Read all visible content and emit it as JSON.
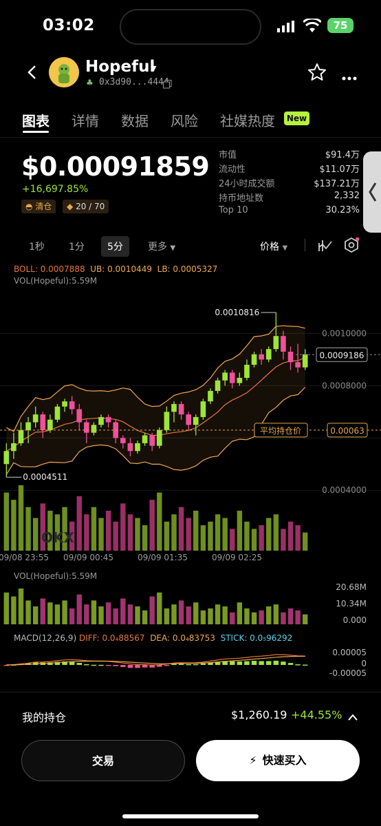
{
  "status": {
    "time": "03:02",
    "battery": "75"
  },
  "token": {
    "name": "Hopeful",
    "address": "0x3d90...4444"
  },
  "tabs": [
    {
      "label": "图表"
    },
    {
      "label": "详情"
    },
    {
      "label": "数据"
    },
    {
      "label": "风险"
    },
    {
      "label": "社媒热度"
    }
  ],
  "new_badge": "New",
  "price": {
    "value": "$0.00091859",
    "change": "+16,697.85%",
    "chip_clear": "清仓",
    "chip_score": "20 / 70"
  },
  "stats": [
    {
      "label": "市值",
      "value": "$91.4万"
    },
    {
      "label": "流动性",
      "value": "$11.07万"
    },
    {
      "label": "24小时成交额",
      "value": "$137.21万"
    },
    {
      "label": "持币地址数",
      "value": "2,332"
    },
    {
      "label": "Top 10",
      "value": "30.23%"
    }
  ],
  "timeframes": [
    {
      "label": "1秒"
    },
    {
      "label": "1分"
    },
    {
      "label": "5分"
    },
    {
      "label": "更多"
    }
  ],
  "price_toggle": "价格",
  "boll": {
    "boll": "BOLL: 0.0007888",
    "ub": "UB: 0.0010449",
    "lb": "LB: 0.0005327"
  },
  "vol_main": "VOL(Hopeful):5.59M",
  "vol_sub": "VOL(Hopeful):5.59M",
  "macd": {
    "title": "MACD(12,26,9)",
    "diff": "DIFF: 0.0₄88567",
    "dea": "DEA: 0.0₄83753",
    "stick": "STICK: 0.0₅96292"
  },
  "avg_cost_label": "平均持仓价",
  "avg_cost_value": "0.00063",
  "current_price_tag": "0.0009186",
  "watermark": "OKX",
  "colors": {
    "up": "#9ee53a",
    "down": "#f0509a",
    "boll_mid": "#e8783a",
    "boll_band": "#f2a850",
    "accent": "#b5f23b"
  },
  "holding": {
    "title": "我的持仓",
    "value": "$1,260.19",
    "pct": "+44.55%"
  },
  "actions": {
    "trade": "交易",
    "quick_buy": "快速买入"
  },
  "chart_data": {
    "type": "candlestick",
    "y_axis_labels": [
      "0.0010000",
      "0.0008000",
      "0.0004000"
    ],
    "x_axis_labels": [
      "09/08 23:55",
      "09/09 00:45",
      "09/09 01:35",
      "09/09 02:25"
    ],
    "high_label": "0.0010816",
    "low_label": "0.0004511",
    "ylim": [
      0.00034,
      0.00113
    ],
    "candles": [
      [
        0.0005,
        0.00055,
        0.00045,
        0.00058
      ],
      [
        0.00055,
        0.00058,
        0.00052,
        0.00062
      ],
      [
        0.00058,
        0.00063,
        0.00057,
        0.00066
      ],
      [
        0.00063,
        0.00066,
        0.00058,
        0.00068
      ],
      [
        0.00066,
        0.00069,
        0.00064,
        0.00072
      ],
      [
        0.00069,
        0.00063,
        0.0006,
        0.0007
      ],
      [
        0.00063,
        0.00067,
        0.00062,
        0.00069
      ],
      [
        0.00067,
        0.00072,
        0.00066,
        0.00073
      ],
      [
        0.00072,
        0.00074,
        0.0007,
        0.00075
      ],
      [
        0.00074,
        0.00071,
        0.00069,
        0.00076
      ],
      [
        0.00071,
        0.00066,
        0.00063,
        0.00073
      ],
      [
        0.00066,
        0.00062,
        0.00058,
        0.00067
      ],
      [
        0.00062,
        0.00065,
        0.00061,
        0.00066
      ],
      [
        0.00065,
        0.00068,
        0.00064,
        0.00069
      ],
      [
        0.00068,
        0.00066,
        0.00064,
        0.00069
      ],
      [
        0.00066,
        0.0006,
        0.00058,
        0.00067
      ],
      [
        0.0006,
        0.00058,
        0.00056,
        0.00061
      ],
      [
        0.00058,
        0.00055,
        0.00053,
        0.0006
      ],
      [
        0.00055,
        0.00058,
        0.00054,
        0.00059
      ],
      [
        0.00058,
        0.00061,
        0.00057,
        0.00062
      ],
      [
        0.00061,
        0.00057,
        0.00055,
        0.00062
      ],
      [
        0.00057,
        0.00063,
        0.00056,
        0.00064
      ],
      [
        0.00063,
        0.0007,
        0.00062,
        0.00072
      ],
      [
        0.0007,
        0.00073,
        0.00066,
        0.00074
      ],
      [
        0.00073,
        0.00069,
        0.00067,
        0.00074
      ],
      [
        0.00069,
        0.00065,
        0.00063,
        0.0007
      ],
      [
        0.00065,
        0.00068,
        0.00061,
        0.00069
      ],
      [
        0.00068,
        0.00074,
        0.00067,
        0.00075
      ],
      [
        0.00074,
        0.00078,
        0.00073,
        0.00079
      ],
      [
        0.00078,
        0.00082,
        0.00077,
        0.00083
      ],
      [
        0.00082,
        0.00085,
        0.0008,
        0.00086
      ],
      [
        0.00085,
        0.00081,
        0.00079,
        0.00086
      ],
      [
        0.00081,
        0.00083,
        0.0008,
        0.00085
      ],
      [
        0.00083,
        0.00088,
        0.00082,
        0.0009
      ],
      [
        0.00088,
        0.00092,
        0.00087,
        0.00093
      ],
      [
        0.00092,
        0.0009,
        0.00088,
        0.00094
      ],
      [
        0.0009,
        0.00094,
        0.00089,
        0.00095
      ],
      [
        0.00094,
        0.00099,
        0.00093,
        0.00108
      ],
      [
        0.00099,
        0.00093,
        0.0009,
        0.00101
      ],
      [
        0.00093,
        0.00089,
        0.00086,
        0.00095
      ],
      [
        0.00089,
        0.00087,
        0.00085,
        0.00096
      ],
      [
        0.00087,
        0.00092,
        0.00086,
        0.00094
      ]
    ],
    "volumes": [
      16,
      14,
      18,
      12,
      9,
      13,
      11,
      10,
      12,
      8,
      15,
      10,
      12,
      9,
      11,
      8,
      13,
      10,
      9,
      7,
      14,
      16,
      8,
      10,
      12,
      9,
      11,
      7,
      8,
      10,
      9,
      6,
      11,
      8,
      6,
      7,
      9,
      10,
      6,
      8,
      7,
      5
    ],
    "vol_axis_labels": [
      "20.68M",
      "10.34M",
      "0.000"
    ],
    "macd_axis_labels": [
      "0.00005",
      "0",
      "-0.00005"
    ]
  }
}
